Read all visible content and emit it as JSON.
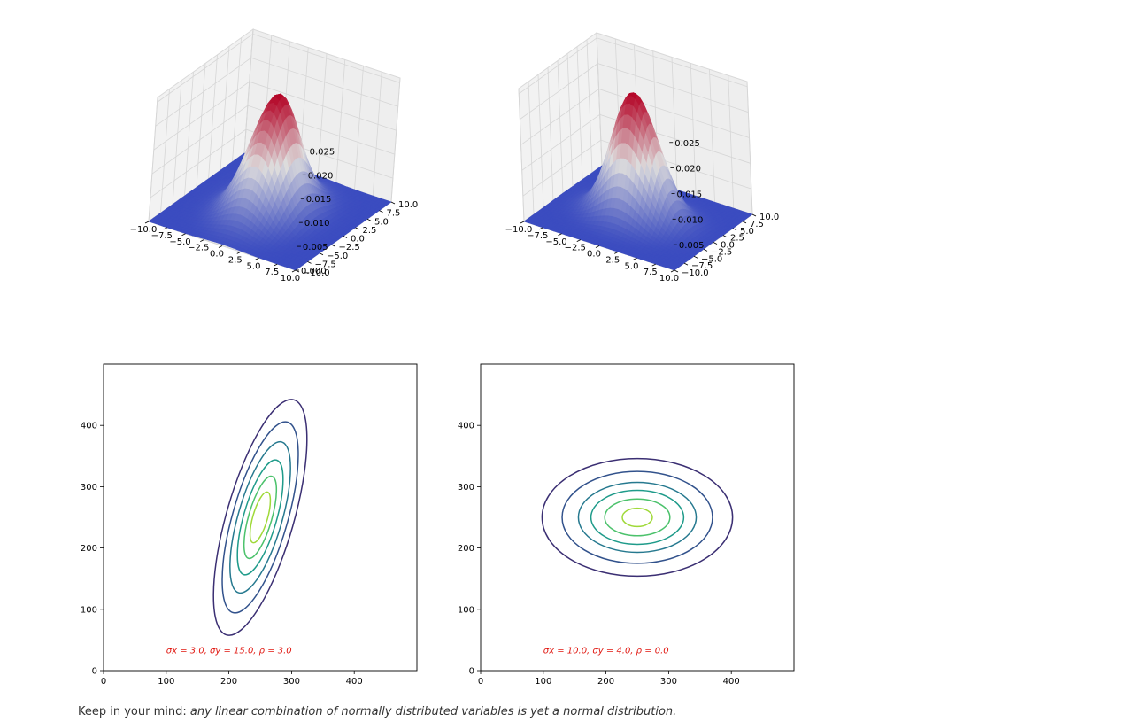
{
  "footer": {
    "lead": "Keep in your mind:",
    "emphasis": "any linear combination of normally distributed variables is yet a normal distribution."
  },
  "colors": {
    "contour_levels": [
      "#3b2f73",
      "#32528c",
      "#26798f",
      "#1f9b8a",
      "#4cc26c",
      "#9fd938"
    ],
    "surface_low": "#3b4cc0",
    "surface_mid": "#dddcdc",
    "surface_high": "#b40426",
    "annotation": "#e0160f"
  },
  "chart_data": [
    {
      "type": "surface3d",
      "colormap": "coolwarm",
      "x_ticks": [
        "−10.0",
        "−7.5",
        "−5.0",
        "−2.5",
        "0.0",
        "2.5",
        "5.0",
        "7.5",
        "10.0"
      ],
      "y_ticks": [
        "−10.0",
        "−7.5",
        "−5.0",
        "−2.5",
        "0.0",
        "2.5",
        "5.0",
        "7.5",
        "10.0"
      ],
      "z_ticks": [
        "0.000",
        "0.005",
        "0.010",
        "0.015",
        "0.020",
        "0.025"
      ],
      "xlim": [
        -10,
        10
      ],
      "ylim": [
        -10,
        10
      ],
      "zlim": [
        0,
        0.026
      ],
      "params": {
        "sigma_x": 3.0,
        "sigma_y": 15.0,
        "rho": 3.0
      },
      "peak": 0.0245
    },
    {
      "type": "surface3d",
      "colormap": "coolwarm",
      "x_ticks": [
        "−10.0",
        "−7.5",
        "−5.0",
        "−2.5",
        "0.0",
        "2.5",
        "5.0",
        "7.5",
        "10.0"
      ],
      "y_ticks": [
        "−10.0",
        "−7.5",
        "−5.0",
        "−2.5",
        "0.0",
        "2.5",
        "5.0",
        "7.5",
        "10.0"
      ],
      "z_ticks": [
        "0.005",
        "0.010",
        "0.015",
        "0.020",
        "0.025"
      ],
      "xlim": [
        -10,
        10
      ],
      "ylim": [
        -10,
        10
      ],
      "zlim": [
        0,
        0.026
      ],
      "params": {
        "sigma_x": 10.0,
        "sigma_y": 4.0,
        "rho": 0.0
      },
      "peak": 0.0245
    },
    {
      "type": "contour",
      "xlim": [
        0,
        500
      ],
      "ylim": [
        0,
        500
      ],
      "x_ticks": [
        "0",
        "100",
        "200",
        "300",
        "400"
      ],
      "y_ticks": [
        "0",
        "100",
        "200",
        "300",
        "400"
      ],
      "x_tick_values": [
        0,
        100,
        200,
        300,
        400
      ],
      "y_tick_values": [
        0,
        100,
        200,
        300,
        400
      ],
      "center": [
        250,
        250
      ],
      "rotation_deg": 74,
      "levels": [
        {
          "a": 195,
          "b": 55
        },
        {
          "a": 158,
          "b": 45
        },
        {
          "a": 125,
          "b": 36
        },
        {
          "a": 95,
          "b": 27
        },
        {
          "a": 68,
          "b": 19
        },
        {
          "a": 42,
          "b": 12
        }
      ],
      "annotation": "σx = 3.0, σy = 15.0, ρ = 3.0",
      "annotation_pos": [
        100,
        28
      ]
    },
    {
      "type": "contour",
      "xlim": [
        0,
        500
      ],
      "ylim": [
        0,
        500
      ],
      "x_ticks": [
        "0",
        "100",
        "200",
        "300",
        "400"
      ],
      "y_ticks": [
        "0",
        "100",
        "200",
        "300",
        "400"
      ],
      "x_tick_values": [
        0,
        100,
        200,
        300,
        400
      ],
      "y_tick_values": [
        0,
        100,
        200,
        300,
        400
      ],
      "center": [
        250,
        250
      ],
      "rotation_deg": 0,
      "levels": [
        {
          "a": 152,
          "b": 96
        },
        {
          "a": 120,
          "b": 75
        },
        {
          "a": 94,
          "b": 57
        },
        {
          "a": 74,
          "b": 44
        },
        {
          "a": 52,
          "b": 30
        },
        {
          "a": 24,
          "b": 15
        }
      ],
      "annotation": "σx = 10.0, σy = 4.0, ρ = 0.0",
      "annotation_pos": [
        100,
        28
      ]
    }
  ]
}
